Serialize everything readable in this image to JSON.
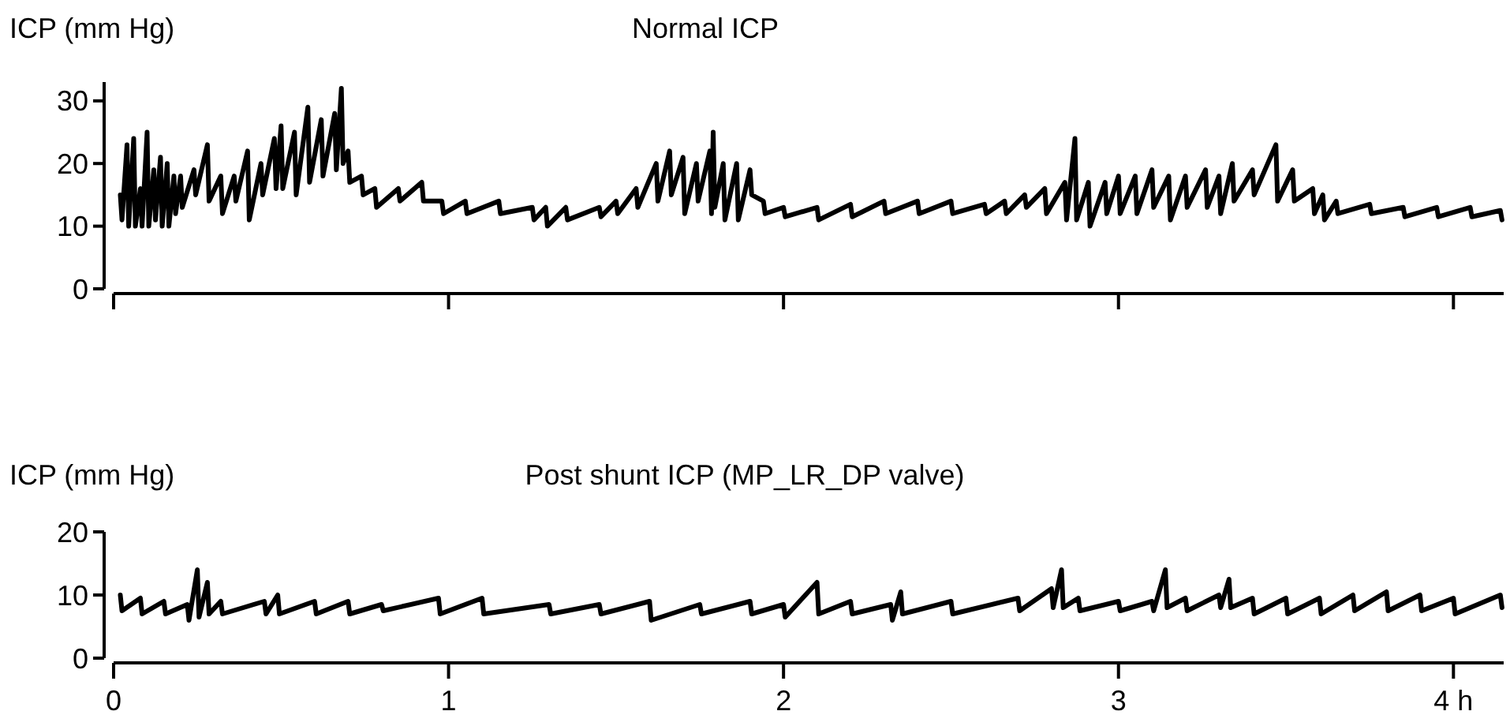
{
  "chart_data": [
    {
      "type": "line",
      "title": "Normal ICP",
      "ylabel": "ICP (mm Hg)",
      "xlim": [
        0,
        4.15
      ],
      "xticks": [
        {
          "value": 0,
          "label": null
        },
        {
          "value": 1,
          "label": null
        },
        {
          "value": 2,
          "label": null
        },
        {
          "value": 3,
          "label": null
        },
        {
          "value": 4,
          "label": null
        }
      ],
      "ylim": [
        0,
        33
      ],
      "yticks": [
        0,
        10,
        20,
        30
      ],
      "tick_labels": "y",
      "series": [
        {
          "color": "#000000",
          "x": [
            0.02,
            0.025,
            0.04,
            0.045,
            0.06,
            0.065,
            0.08,
            0.085,
            0.1,
            0.105,
            0.12,
            0.125,
            0.14,
            0.145,
            0.16,
            0.165,
            0.18,
            0.185,
            0.2,
            0.205,
            0.24,
            0.245,
            0.28,
            0.285,
            0.32,
            0.325,
            0.36,
            0.365,
            0.4,
            0.405,
            0.44,
            0.445,
            0.48,
            0.485,
            0.5,
            0.505,
            0.54,
            0.545,
            0.58,
            0.585,
            0.62,
            0.625,
            0.66,
            0.665,
            0.68,
            0.685,
            0.7,
            0.705,
            0.74,
            0.745,
            0.78,
            0.785,
            0.85,
            0.855,
            0.92,
            0.925,
            0.98,
            0.985,
            1.05,
            1.055,
            1.15,
            1.155,
            1.25,
            1.255,
            1.29,
            1.295,
            1.35,
            1.355,
            1.45,
            1.455,
            1.5,
            1.505,
            1.56,
            1.565,
            1.62,
            1.625,
            1.66,
            1.665,
            1.7,
            1.705,
            1.74,
            1.745,
            1.78,
            1.785,
            1.79,
            1.795,
            1.82,
            1.825,
            1.86,
            1.865,
            1.9,
            1.905,
            1.94,
            1.945,
            2.0,
            2.005,
            2.1,
            2.105,
            2.2,
            2.205,
            2.3,
            2.305,
            2.4,
            2.405,
            2.5,
            2.505,
            2.6,
            2.605,
            2.66,
            2.665,
            2.72,
            2.725,
            2.78,
            2.785,
            2.84,
            2.845,
            2.87,
            2.875,
            2.91,
            2.915,
            2.96,
            2.965,
            3.0,
            3.005,
            3.05,
            3.055,
            3.1,
            3.105,
            3.15,
            3.155,
            3.2,
            3.205,
            3.26,
            3.265,
            3.3,
            3.305,
            3.34,
            3.345,
            3.4,
            3.405,
            3.47,
            3.475,
            3.52,
            3.525,
            3.58,
            3.585,
            3.61,
            3.615,
            3.65,
            3.655,
            3.75,
            3.755,
            3.85,
            3.855,
            3.95,
            3.955,
            4.05,
            4.055,
            4.14,
            4.145
          ],
          "values": [
            15,
            11,
            23,
            10,
            24,
            10,
            16,
            10,
            25,
            10,
            19,
            11,
            21,
            10,
            20,
            10,
            18,
            12,
            18,
            13,
            19,
            15,
            23,
            14,
            18,
            12,
            18,
            14,
            22,
            11,
            20,
            15,
            24,
            16,
            26,
            16,
            25,
            15,
            29,
            17,
            27,
            18,
            28,
            19,
            32,
            20,
            22,
            17,
            18,
            15,
            16,
            13,
            16,
            14,
            17,
            14,
            14,
            12,
            14,
            12,
            14,
            12,
            13,
            11,
            13,
            10,
            13,
            11,
            13,
            11.5,
            14,
            12,
            16,
            13,
            20,
            14,
            22,
            15,
            21,
            12,
            20,
            14,
            22,
            12,
            25,
            13,
            20,
            11,
            20,
            11,
            19,
            15,
            14,
            12,
            13,
            11.5,
            13,
            11,
            13.5,
            11.5,
            14,
            12,
            14,
            12,
            14,
            12,
            13.5,
            12,
            14,
            12,
            15,
            13,
            16,
            12,
            17,
            11,
            24,
            11,
            17,
            10,
            17,
            12,
            18,
            12,
            18,
            12,
            19,
            13,
            18,
            11,
            18,
            13,
            19,
            13,
            18,
            12,
            20,
            14,
            19,
            15,
            23,
            14,
            19,
            14,
            16,
            12,
            15,
            11,
            14,
            12,
            13.5,
            12,
            13,
            11.5,
            13,
            11.5,
            13,
            11.5,
            12.5,
            11
          ]
        }
      ]
    },
    {
      "type": "line",
      "title": "Post shunt ICP (MP_LR_DP valve)",
      "ylabel": "ICP (mm Hg)",
      "xlim": [
        0,
        4.15
      ],
      "xticks": [
        0,
        1,
        2,
        3,
        {
          "value": 4,
          "label": "4 h"
        }
      ],
      "ylim": [
        0,
        20
      ],
      "yticks": [
        0,
        10,
        20
      ],
      "series": [
        {
          "color": "#000000",
          "x": [
            0.02,
            0.025,
            0.08,
            0.085,
            0.15,
            0.155,
            0.22,
            0.225,
            0.25,
            0.255,
            0.28,
            0.285,
            0.32,
            0.325,
            0.45,
            0.455,
            0.49,
            0.495,
            0.6,
            0.605,
            0.7,
            0.705,
            0.8,
            0.805,
            0.97,
            0.975,
            1.1,
            1.105,
            1.3,
            1.305,
            1.45,
            1.455,
            1.6,
            1.605,
            1.75,
            1.755,
            1.9,
            1.905,
            2.0,
            2.005,
            2.1,
            2.105,
            2.2,
            2.205,
            2.32,
            2.325,
            2.35,
            2.355,
            2.5,
            2.505,
            2.7,
            2.705,
            2.8,
            2.805,
            2.83,
            2.835,
            2.88,
            2.885,
            3.0,
            3.005,
            3.1,
            3.105,
            3.14,
            3.145,
            3.2,
            3.205,
            3.3,
            3.305,
            3.33,
            3.335,
            3.4,
            3.405,
            3.5,
            3.505,
            3.6,
            3.605,
            3.7,
            3.705,
            3.8,
            3.805,
            3.9,
            3.905,
            4.0,
            4.005,
            4.14,
            4.145
          ],
          "values": [
            10,
            7.5,
            9.5,
            7,
            9,
            7,
            8.5,
            6,
            14,
            6.5,
            12,
            7,
            9,
            7,
            9,
            7,
            10,
            7,
            9,
            7,
            9,
            7,
            8.5,
            7.5,
            9.5,
            7,
            9.5,
            7,
            8.5,
            7,
            8.5,
            7,
            9,
            6,
            8.5,
            7,
            9,
            7,
            8.5,
            6.5,
            12,
            7,
            9,
            7,
            8.5,
            6,
            10.5,
            7,
            9,
            7,
            9.5,
            7.5,
            11,
            8,
            14,
            8,
            9.5,
            7.5,
            9,
            7.5,
            9,
            7.5,
            14,
            8,
            9.5,
            7.5,
            10,
            8,
            12.5,
            8,
            9.5,
            7,
            9.5,
            7,
            9.5,
            7,
            10,
            7.5,
            10.5,
            7.5,
            10,
            7.5,
            9.5,
            7,
            10,
            8
          ]
        }
      ]
    }
  ]
}
